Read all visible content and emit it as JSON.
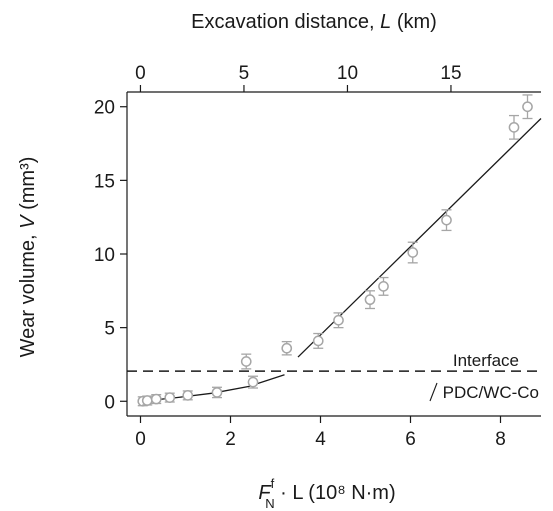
{
  "chart_data": {
    "type": "scatter",
    "title": "",
    "xlabel": {
      "symbol": "F",
      "superscript": "f",
      "subscript": "N",
      "rest": " · L  (10⁸ N·m)"
    },
    "x2label": {
      "prefix": "Excavation distance, ",
      "italic": "L",
      "suffix": " (km)"
    },
    "ylabel": {
      "prefix": "Wear volume, ",
      "italic": "V",
      "suffix": " (mm³)"
    },
    "xlim": [
      -0.3,
      8.9
    ],
    "ylim": [
      -1.0,
      21.0
    ],
    "x2lim": [
      -0.65,
      19.35
    ],
    "xticks": [
      0,
      2,
      4,
      6,
      8
    ],
    "yticks": [
      0,
      5,
      10,
      15,
      20
    ],
    "x2ticks": [
      0,
      5,
      10,
      15
    ],
    "grid": false,
    "series": [
      {
        "marker": "open-circle",
        "color": "#a6a6a6",
        "points": [
          {
            "x": 0.05,
            "y": 0.0,
            "err": 0.3
          },
          {
            "x": 0.15,
            "y": 0.05,
            "err": 0.3
          },
          {
            "x": 0.35,
            "y": 0.15,
            "err": 0.3
          },
          {
            "x": 0.65,
            "y": 0.25,
            "err": 0.3
          },
          {
            "x": 1.05,
            "y": 0.4,
            "err": 0.3
          },
          {
            "x": 1.7,
            "y": 0.6,
            "err": 0.35
          },
          {
            "x": 2.35,
            "y": 2.7,
            "err": 0.5
          },
          {
            "x": 2.5,
            "y": 1.3,
            "err": 0.4
          },
          {
            "x": 3.25,
            "y": 3.6,
            "err": 0.45
          },
          {
            "x": 3.95,
            "y": 4.1,
            "err": 0.5
          },
          {
            "x": 4.4,
            "y": 5.5,
            "err": 0.5
          },
          {
            "x": 5.1,
            "y": 6.9,
            "err": 0.6
          },
          {
            "x": 5.4,
            "y": 7.8,
            "err": 0.6
          },
          {
            "x": 6.05,
            "y": 10.1,
            "err": 0.7
          },
          {
            "x": 6.8,
            "y": 12.3,
            "err": 0.7
          },
          {
            "x": 8.3,
            "y": 18.6,
            "err": 0.8
          },
          {
            "x": 8.6,
            "y": 20.0,
            "err": 0.8
          }
        ]
      }
    ],
    "fit_lines": [
      {
        "style": "solid",
        "curve": "lower",
        "points": [
          [
            0.0,
            0.0
          ],
          [
            0.8,
            0.25
          ],
          [
            1.6,
            0.55
          ],
          [
            2.4,
            1.0
          ],
          [
            3.2,
            1.8
          ]
        ]
      },
      {
        "style": "solid",
        "curve": "upper",
        "points": [
          [
            3.5,
            3.0
          ],
          [
            8.9,
            19.2
          ]
        ]
      }
    ],
    "reference_line": {
      "y": 2.05,
      "style": "dashed",
      "label_above": "Interface",
      "label_below": "PDC/WC-Co"
    }
  }
}
